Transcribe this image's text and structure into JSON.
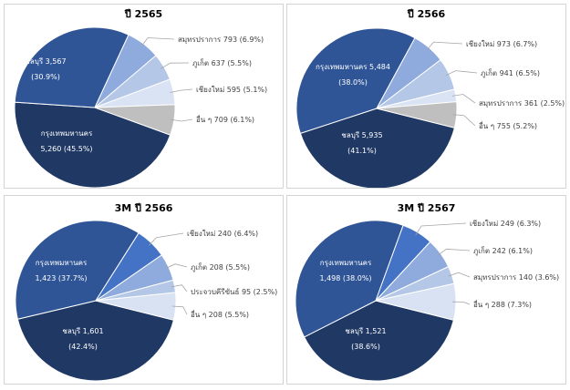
{
  "chart_data": [
    {
      "type": "pie",
      "title": "ปี 2565",
      "slices": [
        {
          "name": "กรุงเทพมหานคร",
          "value": 5260,
          "pct": "45.5%",
          "color": "#203864"
        },
        {
          "name": "ชลบุรี",
          "value": 3567,
          "pct": "30.9%",
          "color": "#2f5597"
        },
        {
          "name": "สมุทรปราการ",
          "value": 793,
          "pct": "6.9%",
          "color": "#8faadc"
        },
        {
          "name": "ภูเก็ต",
          "value": 637,
          "pct": "5.5%",
          "color": "#b4c7e7"
        },
        {
          "name": "เชียงใหม่",
          "value": 595,
          "pct": "5.1%",
          "color": "#dae3f3"
        },
        {
          "name": "อื่น ๆ",
          "value": 709,
          "pct": "6.1%",
          "color": "#bfbfbf"
        }
      ],
      "inside_labels": [
        {
          "lines": [
            "ชลบุรี 3,567",
            "(30.9%)"
          ]
        },
        {
          "lines": [
            "กรุงเทพมหานคร",
            "5,260 (45.5%)"
          ]
        }
      ],
      "outside_labels": [
        "สมุทรปราการ 793 (6.9%)",
        "ภูเก็ต 637 (5.5%)",
        "เชียงใหม่ 595 (5.1%)",
        "อื่น ๆ 709 (6.1%)"
      ]
    },
    {
      "type": "pie",
      "title": "ปี 2566",
      "slices": [
        {
          "name": "ชลบุรี",
          "value": 5935,
          "pct": "41.1%",
          "color": "#203864"
        },
        {
          "name": "กรุงเทพมหานคร",
          "value": 5484,
          "pct": "38.0%",
          "color": "#2f5597"
        },
        {
          "name": "เชียงใหม่",
          "value": 973,
          "pct": "6.7%",
          "color": "#8faadc"
        },
        {
          "name": "ภูเก็ต",
          "value": 941,
          "pct": "6.5%",
          "color": "#b4c7e7"
        },
        {
          "name": "สมุทรปราการ",
          "value": 361,
          "pct": "2.5%",
          "color": "#dae3f3"
        },
        {
          "name": "อื่น ๆ",
          "value": 755,
          "pct": "5.2%",
          "color": "#bfbfbf"
        }
      ],
      "inside_labels": [
        {
          "lines": [
            "กรุงเทพมหานคร 5,484",
            "(38.0%)"
          ]
        },
        {
          "lines": [
            "ชลบุรี 5,935",
            "(41.1%)"
          ]
        }
      ],
      "outside_labels": [
        "เชียงใหม่ 973 (6.7%)",
        "ภูเก็ต 941 (6.5%)",
        "สมุทรปราการ 361 (2.5%)",
        "อื่น ๆ 755 (5.2%)"
      ]
    },
    {
      "type": "pie",
      "title": "3M ปี 2566",
      "slices": [
        {
          "name": "ชลบุรี",
          "value": 1601,
          "pct": "42.4%",
          "color": "#203864"
        },
        {
          "name": "กรุงเทพมหานคร",
          "value": 1423,
          "pct": "37.7%",
          "color": "#2f5597"
        },
        {
          "name": "เชียงใหม่",
          "value": 240,
          "pct": "6.4%",
          "color": "#4472c4"
        },
        {
          "name": "ภูเก็ต",
          "value": 208,
          "pct": "5.5%",
          "color": "#8faadc"
        },
        {
          "name": "ประจวบคีรีขันธ์",
          "value": 95,
          "pct": "2.5%",
          "color": "#b4c7e7"
        },
        {
          "name": "อื่น ๆ",
          "value": 208,
          "pct": "5.5%",
          "color": "#d9e2f3"
        }
      ],
      "inside_labels": [
        {
          "lines": [
            "กรุงเทพมหานคร",
            "1,423 (37.7%)"
          ]
        },
        {
          "lines": [
            "ชลบุรี 1,601",
            "(42.4%)"
          ]
        }
      ],
      "outside_labels": [
        "เชียงใหม่ 240 (6.4%)",
        "ภูเก็ต 208 (5.5%)",
        "ประจวบคีรีขันธ์ 95 (2.5%)",
        "อื่น ๆ 208 (5.5%)"
      ]
    },
    {
      "type": "pie",
      "title": "3M ปี 2567",
      "slices": [
        {
          "name": "ชลบุรี",
          "value": 1521,
          "pct": "38.6%",
          "color": "#203864"
        },
        {
          "name": "กรุงเทพมหานคร",
          "value": 1498,
          "pct": "38.0%",
          "color": "#2f5597"
        },
        {
          "name": "เชียงใหม่",
          "value": 249,
          "pct": "6.3%",
          "color": "#4472c4"
        },
        {
          "name": "ภูเก็ต",
          "value": 242,
          "pct": "6.1%",
          "color": "#8faadc"
        },
        {
          "name": "สมุทรปราการ",
          "value": 140,
          "pct": "3.6%",
          "color": "#b4c7e7"
        },
        {
          "name": "อื่น ๆ",
          "value": 288,
          "pct": "7.3%",
          "color": "#d9e2f3"
        }
      ],
      "inside_labels": [
        {
          "lines": [
            "กรุงเทพมหานคร",
            "1,498 (38.0%)"
          ]
        },
        {
          "lines": [
            "ชลบุรี 1,521",
            "(38.6%)"
          ]
        }
      ],
      "outside_labels": [
        "เชียงใหม่ 249 (6.3%)",
        "ภูเก็ต 242 (6.1%)",
        "สมุทรปราการ 140 (3.6%)",
        "อื่น ๆ 288 (7.3%)"
      ]
    }
  ]
}
